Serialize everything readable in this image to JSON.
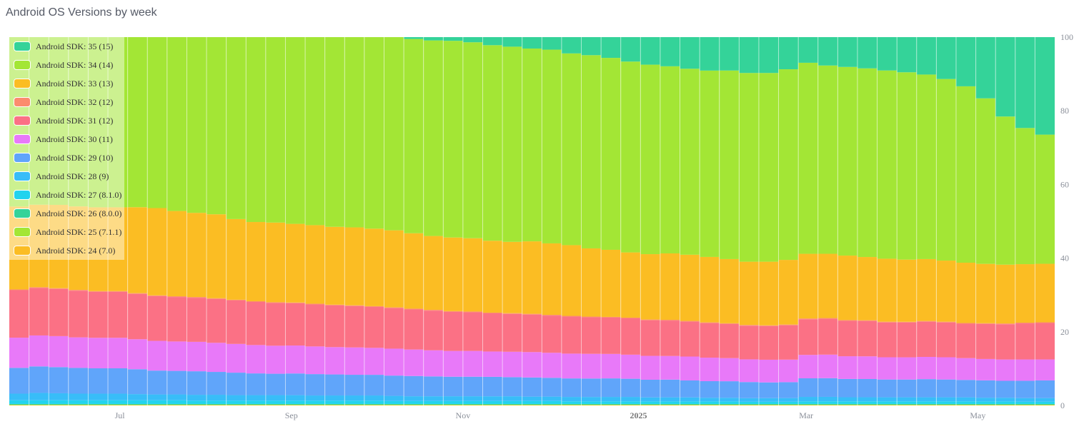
{
  "title": "Android OS Versions by week",
  "chart_data": {
    "type": "bar",
    "stacked": true,
    "normalized": true,
    "ylim": [
      0,
      100
    ],
    "y_ticks": [
      "0",
      "20",
      "40",
      "60",
      "80",
      "100"
    ],
    "x_tick_labels": [
      {
        "label": "Jul",
        "bold": false,
        "week_index": 5.6
      },
      {
        "label": "Sep",
        "bold": false,
        "week_index": 14.3
      },
      {
        "label": "Nov",
        "bold": false,
        "week_index": 23.0
      },
      {
        "label": "2025",
        "bold": true,
        "week_index": 31.9
      },
      {
        "label": "Mar",
        "bold": false,
        "week_index": 40.4
      },
      {
        "label": "May",
        "bold": false,
        "week_index": 49.1
      }
    ],
    "weeks": 53,
    "grid": false,
    "legend_position": "top-left",
    "series": [
      {
        "name": "Android SDK: 24 (7.0)",
        "color": "#fbbd23",
        "values": [
          0.1,
          0.1,
          0.1,
          0.1,
          0.1,
          0.1,
          0.1,
          0.1,
          0.1,
          0.1,
          0.1,
          0.1,
          0.1,
          0.1,
          0.1,
          0.1,
          0.1,
          0.1,
          0.1,
          0.1,
          0.1,
          0.1,
          0.1,
          0.1,
          0.1,
          0.1,
          0.1,
          0.1,
          0.1,
          0.1,
          0.1,
          0.1,
          0.1,
          0.1,
          0.1,
          0.1,
          0.1,
          0.1,
          0.1,
          0.1,
          0.1,
          0.1,
          0.1,
          0.1,
          0.1,
          0.1,
          0.1,
          0.1,
          0.1,
          0.1,
          0.1,
          0.1,
          0.1
        ]
      },
      {
        "name": "Android SDK: 25 (7.1.1)",
        "color": "#a3e635",
        "values": [
          0.1,
          0.1,
          0.1,
          0.1,
          0.1,
          0.1,
          0.1,
          0.1,
          0.1,
          0.1,
          0.1,
          0.1,
          0.1,
          0.1,
          0.1,
          0.1,
          0.1,
          0.1,
          0.1,
          0.1,
          0.1,
          0.1,
          0.1,
          0.1,
          0.1,
          0.1,
          0.1,
          0.1,
          0.1,
          0.1,
          0.1,
          0.1,
          0.1,
          0.1,
          0.1,
          0.1,
          0.1,
          0.1,
          0.1,
          0.1,
          0.1,
          0.1,
          0.1,
          0.1,
          0.1,
          0.1,
          0.1,
          0.1,
          0.1,
          0.1,
          0.1,
          0.1,
          0.1
        ]
      },
      {
        "name": "Android SDK: 26 (8.0.0)",
        "color": "#34d399",
        "values": [
          0.2,
          0.2,
          0.2,
          0.2,
          0.2,
          0.2,
          0.2,
          0.2,
          0.2,
          0.2,
          0.2,
          0.2,
          0.2,
          0.2,
          0.2,
          0.2,
          0.2,
          0.2,
          0.2,
          0.2,
          0.2,
          0.2,
          0.2,
          0.2,
          0.2,
          0.2,
          0.2,
          0.2,
          0.2,
          0.2,
          0.2,
          0.2,
          0.2,
          0.2,
          0.2,
          0.2,
          0.2,
          0.2,
          0.2,
          0.2,
          0.2,
          0.2,
          0.2,
          0.2,
          0.2,
          0.2,
          0.2,
          0.2,
          0.2,
          0.2,
          0.2,
          0.2,
          0.2
        ]
      },
      {
        "name": "Android SDK: 27 (8.1.0)",
        "color": "#22d3ee",
        "values": [
          1.0,
          1.0,
          1.0,
          1.0,
          1.0,
          1.0,
          1.0,
          1.0,
          1.0,
          0.9,
          0.9,
          0.9,
          0.9,
          0.9,
          0.9,
          0.9,
          0.9,
          0.9,
          0.9,
          0.8,
          0.8,
          0.8,
          0.8,
          0.8,
          0.8,
          0.8,
          0.8,
          0.8,
          0.7,
          0.7,
          0.7,
          0.7,
          0.7,
          0.7,
          0.7,
          0.7,
          0.7,
          0.6,
          0.6,
          0.6,
          0.7,
          0.7,
          0.7,
          0.7,
          0.7,
          0.7,
          0.7,
          0.7,
          0.7,
          0.7,
          0.7,
          0.6,
          0.6
        ]
      },
      {
        "name": "Android SDK: 28 (9)",
        "color": "#38bdf8",
        "values": [
          1.8,
          2.0,
          1.9,
          1.8,
          1.8,
          1.8,
          1.7,
          1.6,
          1.6,
          1.6,
          1.6,
          1.5,
          1.5,
          1.5,
          1.5,
          1.4,
          1.4,
          1.4,
          1.4,
          1.4,
          1.3,
          1.3,
          1.3,
          1.3,
          1.3,
          1.3,
          1.2,
          1.2,
          1.2,
          1.2,
          1.2,
          1.2,
          1.1,
          1.1,
          1.1,
          1.0,
          1.0,
          1.0,
          1.0,
          1.0,
          1.2,
          1.2,
          1.1,
          1.1,
          1.1,
          1.1,
          1.1,
          1.1,
          1.1,
          1.0,
          1.0,
          1.0,
          1.0
        ]
      },
      {
        "name": "Android SDK: 29 (10)",
        "color": "#60a5fa",
        "values": [
          7.0,
          7.2,
          7.1,
          7.0,
          6.9,
          6.9,
          6.8,
          6.5,
          6.4,
          6.4,
          6.2,
          6.1,
          5.9,
          5.8,
          5.9,
          5.8,
          5.7,
          5.6,
          5.6,
          5.5,
          5.5,
          5.4,
          5.3,
          5.3,
          5.3,
          5.2,
          5.2,
          5.1,
          5.0,
          5.0,
          5.0,
          4.9,
          4.8,
          4.8,
          4.6,
          4.5,
          4.5,
          4.4,
          4.3,
          4.3,
          5.0,
          5.0,
          4.9,
          4.9,
          4.8,
          4.8,
          4.9,
          4.8,
          4.7,
          4.7,
          4.6,
          4.7,
          4.8
        ]
      },
      {
        "name": "Android SDK: 30 (11)",
        "color": "#e879f9",
        "values": [
          8.2,
          8.4,
          8.4,
          8.3,
          8.3,
          8.3,
          8.2,
          8.1,
          8.0,
          8.0,
          7.9,
          7.8,
          7.7,
          7.6,
          7.6,
          7.5,
          7.4,
          7.4,
          7.3,
          7.3,
          7.2,
          7.1,
          7.0,
          7.0,
          6.9,
          6.9,
          6.9,
          6.8,
          6.7,
          6.7,
          6.6,
          6.5,
          6.5,
          6.4,
          6.5,
          6.4,
          6.3,
          6.2,
          6.2,
          6.1,
          6.3,
          6.3,
          6.1,
          6.1,
          6.0,
          6.0,
          6.0,
          6.0,
          5.9,
          5.8,
          5.8,
          5.8,
          5.7
        ]
      },
      {
        "name": "Android SDK: 31 (12)",
        "color": "#fb7185",
        "values": [
          12.9,
          12.9,
          12.8,
          12.7,
          12.5,
          12.5,
          12.4,
          12.2,
          12.1,
          12.0,
          11.9,
          11.8,
          11.7,
          11.6,
          11.5,
          11.4,
          11.3,
          11.2,
          11.1,
          11.0,
          10.9,
          10.8,
          10.6,
          10.5,
          10.4,
          10.3,
          10.2,
          10.1,
          10.0,
          9.9,
          9.8,
          9.8,
          9.7,
          9.6,
          9.5,
          9.4,
          9.3,
          9.2,
          9.2,
          9.3,
          9.6,
          9.6,
          9.5,
          9.5,
          9.4,
          9.4,
          9.5,
          9.4,
          9.3,
          9.5,
          9.6,
          9.8,
          9.9
        ]
      },
      {
        "name": "Android SDK: 32 (12)",
        "color": "#fb8c6e",
        "values": [
          0.2,
          0.2,
          0.2,
          0.2,
          0.2,
          0.2,
          0.2,
          0.2,
          0.2,
          0.2,
          0.2,
          0.2,
          0.2,
          0.2,
          0.2,
          0.2,
          0.2,
          0.2,
          0.2,
          0.2,
          0.2,
          0.2,
          0.2,
          0.2,
          0.2,
          0.2,
          0.2,
          0.2,
          0.2,
          0.2,
          0.2,
          0.2,
          0.2,
          0.2,
          0.2,
          0.2,
          0.2,
          0.2,
          0.2,
          0.2,
          0.2,
          0.2,
          0.2,
          0.2,
          0.2,
          0.2,
          0.2,
          0.2,
          0.2,
          0.2,
          0.2,
          0.2,
          0.2
        ]
      },
      {
        "name": "Android SDK: 33 (13)",
        "color": "#fbbd23",
        "values": [
          22.5,
          22.4,
          22.6,
          22.7,
          22.8,
          22.8,
          23.5,
          23.8,
          23.2,
          22.9,
          22.8,
          21.9,
          21.5,
          21.6,
          21.4,
          21.3,
          21.1,
          21.1,
          21.0,
          20.9,
          20.5,
          20.1,
          20.0,
          19.9,
          19.6,
          19.4,
          19.7,
          19.4,
          19.1,
          18.5,
          18.1,
          17.6,
          17.8,
          18.0,
          18.0,
          17.8,
          17.5,
          17.3,
          17.4,
          17.5,
          17.4,
          17.2,
          17.3,
          17.0,
          17.0,
          16.8,
          16.7,
          16.5,
          16.3,
          16.1,
          16.0,
          15.9,
          15.9
        ]
      },
      {
        "name": "Android SDK: 34 (14)",
        "color": "#a3e635",
        "values": [
          46.0,
          45.5,
          45.5,
          46.0,
          46.3,
          46.3,
          46.5,
          46.6,
          47.3,
          47.8,
          48.1,
          49.4,
          50.2,
          50.3,
          50.8,
          51.0,
          51.4,
          51.5,
          51.9,
          52.4,
          52.8,
          53.2,
          53.4,
          53.2,
          53.3,
          53.1,
          52.4,
          52.6,
          51.8,
          52.4,
          51.8,
          51.5,
          51.6,
          50.7,
          50.6,
          50.7,
          51.4,
          51.6,
          51.6,
          51.6,
          51.4,
          50.4,
          50.6,
          50.7,
          50.8,
          50.6,
          49.8,
          49.0,
          47.7,
          44.9,
          40.3,
          37.0,
          35.1
        ]
      },
      {
        "name": "Android SDK: 35 (15)",
        "color": "#34d399",
        "values": [
          0.0,
          0.0,
          0.0,
          0.0,
          0.0,
          0.0,
          0.0,
          0.0,
          0.0,
          0.0,
          0.0,
          0.0,
          0.0,
          0.0,
          0.0,
          0.0,
          0.0,
          0.0,
          0.0,
          0.0,
          0.5,
          0.9,
          1.0,
          1.4,
          2.2,
          2.6,
          3.1,
          3.4,
          4.4,
          4.9,
          5.6,
          6.6,
          7.5,
          7.9,
          8.6,
          9.1,
          9.1,
          9.8,
          9.8,
          8.7,
          6.9,
          7.6,
          8.0,
          8.4,
          9.0,
          9.5,
          10.1,
          11.3,
          13.3,
          16.6,
          21.6,
          24.7,
          26.5
        ]
      }
    ]
  }
}
